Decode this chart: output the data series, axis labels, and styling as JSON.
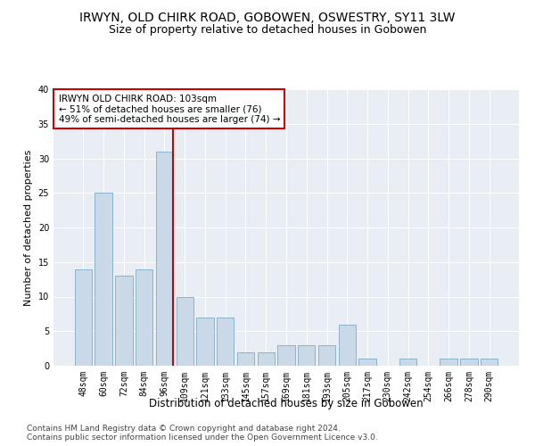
{
  "title": "IRWYN, OLD CHIRK ROAD, GOBOWEN, OSWESTRY, SY11 3LW",
  "subtitle": "Size of property relative to detached houses in Gobowen",
  "xlabel": "Distribution of detached houses by size in Gobowen",
  "ylabel": "Number of detached properties",
  "categories": [
    "48sqm",
    "60sqm",
    "72sqm",
    "84sqm",
    "96sqm",
    "109sqm",
    "121sqm",
    "133sqm",
    "145sqm",
    "157sqm",
    "169sqm",
    "181sqm",
    "193sqm",
    "205sqm",
    "217sqm",
    "230sqm",
    "242sqm",
    "254sqm",
    "266sqm",
    "278sqm",
    "290sqm"
  ],
  "values": [
    14,
    25,
    13,
    14,
    31,
    10,
    7,
    7,
    2,
    2,
    3,
    3,
    3,
    6,
    1,
    0,
    1,
    0,
    1,
    1,
    1
  ],
  "bar_color": "#c9d9e8",
  "bar_edge_color": "#8ab4cc",
  "vline_x_index": 4,
  "vline_color": "#cc0000",
  "annotation_text": "IRWYN OLD CHIRK ROAD: 103sqm\n← 51% of detached houses are smaller (76)\n49% of semi-detached houses are larger (74) →",
  "annotation_box_color": "#ffffff",
  "annotation_box_edgecolor": "#cc0000",
  "ylim": [
    0,
    40
  ],
  "yticks": [
    0,
    5,
    10,
    15,
    20,
    25,
    30,
    35,
    40
  ],
  "footer_line1": "Contains HM Land Registry data © Crown copyright and database right 2024.",
  "footer_line2": "Contains public sector information licensed under the Open Government Licence v3.0.",
  "plot_bg_color": "#e8eef4",
  "title_fontsize": 10,
  "subtitle_fontsize": 9,
  "xlabel_fontsize": 8.5,
  "ylabel_fontsize": 8,
  "tick_fontsize": 7,
  "annotation_fontsize": 7.5,
  "footer_fontsize": 6.5
}
